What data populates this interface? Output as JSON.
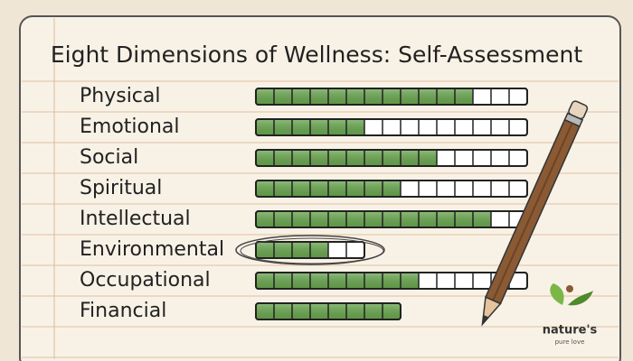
{
  "chart_data": {
    "type": "segment-bar",
    "title": "Eight Dimensions of Wellness: Self-Assessment",
    "categories": [
      "Physical",
      "Emotional",
      "Social",
      "Spiritual",
      "Intellectual",
      "Environmental",
      "Occupational",
      "Financial"
    ],
    "values": [
      12,
      6,
      10,
      8,
      13,
      4,
      9,
      8
    ],
    "totals": [
      15,
      15,
      15,
      15,
      15,
      6,
      15,
      8
    ],
    "highlight": 5,
    "color": "#6aa84f"
  },
  "logo": {
    "name": "nature's",
    "tagline": "pure love"
  }
}
